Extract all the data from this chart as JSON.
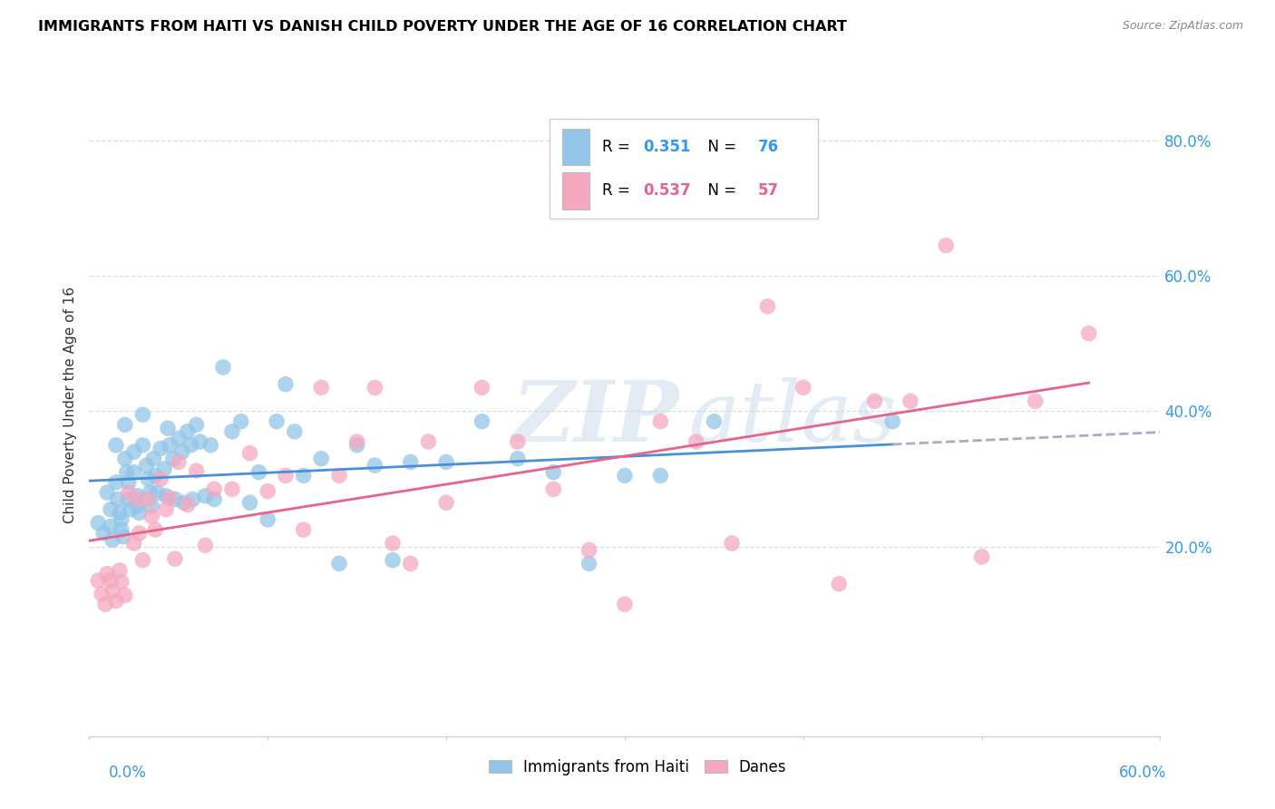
{
  "title": "IMMIGRANTS FROM HAITI VS DANISH CHILD POVERTY UNDER THE AGE OF 16 CORRELATION CHART",
  "source_text": "Source: ZipAtlas.com",
  "ylabel": "Child Poverty Under the Age of 16",
  "ytick_labels": [
    "",
    "20.0%",
    "40.0%",
    "60.0%",
    "80.0%"
  ],
  "ytick_values": [
    0.0,
    0.2,
    0.4,
    0.6,
    0.8
  ],
  "xlim": [
    0.0,
    0.6
  ],
  "ylim": [
    -0.08,
    0.9
  ],
  "legend_r1": "0.351",
  "legend_n1": "76",
  "legend_r2": "0.537",
  "legend_n2": "57",
  "color_haiti": "#92C5E8",
  "color_danes": "#F4A8C0",
  "color_line_haiti": "#4A90D9",
  "color_line_danes": "#E8638A",
  "color_dashed": "#AAAACC",
  "background_color": "#FFFFFF",
  "watermark_color": "#C8D8EC",
  "title_fontsize": 11.5,
  "haiti_scatter_x": [
    0.005,
    0.008,
    0.01,
    0.012,
    0.012,
    0.013,
    0.015,
    0.015,
    0.016,
    0.017,
    0.018,
    0.018,
    0.019,
    0.02,
    0.02,
    0.021,
    0.022,
    0.022,
    0.023,
    0.025,
    0.025,
    0.027,
    0.027,
    0.028,
    0.03,
    0.03,
    0.032,
    0.033,
    0.034,
    0.035,
    0.036,
    0.037,
    0.038,
    0.04,
    0.042,
    0.043,
    0.044,
    0.045,
    0.047,
    0.048,
    0.05,
    0.052,
    0.053,
    0.055,
    0.057,
    0.058,
    0.06,
    0.062,
    0.065,
    0.068,
    0.07,
    0.075,
    0.08,
    0.085,
    0.09,
    0.095,
    0.1,
    0.105,
    0.11,
    0.115,
    0.12,
    0.13,
    0.14,
    0.15,
    0.16,
    0.17,
    0.18,
    0.2,
    0.22,
    0.24,
    0.26,
    0.28,
    0.3,
    0.32,
    0.35,
    0.45
  ],
  "haiti_scatter_y": [
    0.235,
    0.22,
    0.28,
    0.255,
    0.23,
    0.21,
    0.35,
    0.295,
    0.27,
    0.25,
    0.24,
    0.225,
    0.215,
    0.38,
    0.33,
    0.31,
    0.295,
    0.27,
    0.255,
    0.34,
    0.31,
    0.275,
    0.26,
    0.25,
    0.395,
    0.35,
    0.32,
    0.3,
    0.28,
    0.26,
    0.33,
    0.305,
    0.28,
    0.345,
    0.315,
    0.275,
    0.375,
    0.35,
    0.33,
    0.27,
    0.36,
    0.34,
    0.265,
    0.37,
    0.35,
    0.27,
    0.38,
    0.355,
    0.275,
    0.35,
    0.27,
    0.465,
    0.37,
    0.385,
    0.265,
    0.31,
    0.24,
    0.385,
    0.44,
    0.37,
    0.305,
    0.33,
    0.175,
    0.35,
    0.32,
    0.18,
    0.325,
    0.325,
    0.385,
    0.33,
    0.31,
    0.175,
    0.305,
    0.305,
    0.385,
    0.385
  ],
  "danes_scatter_x": [
    0.005,
    0.007,
    0.009,
    0.01,
    0.012,
    0.013,
    0.015,
    0.017,
    0.018,
    0.02,
    0.022,
    0.025,
    0.027,
    0.028,
    0.03,
    0.033,
    0.035,
    0.037,
    0.04,
    0.043,
    0.045,
    0.048,
    0.05,
    0.055,
    0.06,
    0.065,
    0.07,
    0.08,
    0.09,
    0.1,
    0.11,
    0.12,
    0.13,
    0.14,
    0.15,
    0.16,
    0.17,
    0.18,
    0.19,
    0.2,
    0.22,
    0.24,
    0.26,
    0.28,
    0.3,
    0.32,
    0.34,
    0.36,
    0.38,
    0.4,
    0.42,
    0.44,
    0.46,
    0.48,
    0.5,
    0.53,
    0.56
  ],
  "danes_scatter_y": [
    0.15,
    0.13,
    0.115,
    0.16,
    0.15,
    0.135,
    0.12,
    0.165,
    0.148,
    0.128,
    0.28,
    0.205,
    0.27,
    0.22,
    0.18,
    0.27,
    0.245,
    0.225,
    0.3,
    0.255,
    0.272,
    0.182,
    0.325,
    0.262,
    0.312,
    0.202,
    0.285,
    0.285,
    0.338,
    0.282,
    0.305,
    0.225,
    0.435,
    0.305,
    0.355,
    0.435,
    0.205,
    0.175,
    0.355,
    0.265,
    0.435,
    0.355,
    0.285,
    0.195,
    0.115,
    0.385,
    0.355,
    0.205,
    0.555,
    0.435,
    0.145,
    0.415,
    0.415,
    0.645,
    0.185,
    0.415,
    0.515
  ]
}
